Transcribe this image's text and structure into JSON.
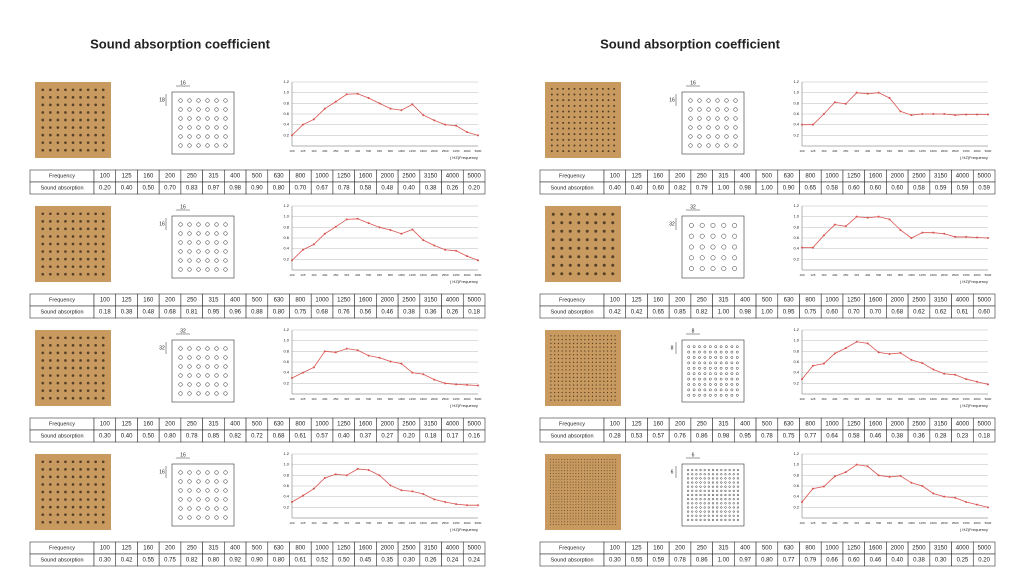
{
  "headers": [
    "Sound absorption coefficient",
    "Sound absorption coefficient"
  ],
  "chart_data": [
    {
      "type": "line",
      "x_label": "( HZ)Frequency",
      "row_labels": [
        "Frequency",
        "Sound absorption"
      ],
      "annotations": [
        "16",
        "18"
      ],
      "categories": [
        "100",
        "125",
        "160",
        "200",
        "250",
        "315",
        "400",
        "500",
        "630",
        "800",
        "1000",
        "1250",
        "1600",
        "2000",
        "2500",
        "3150",
        "4000",
        "5000"
      ],
      "values": [
        0.2,
        0.4,
        0.5,
        0.7,
        0.83,
        0.97,
        0.98,
        0.9,
        0.8,
        0.7,
        0.67,
        0.78,
        0.58,
        0.48,
        0.4,
        0.38,
        0.26,
        0.2
      ],
      "value_labels": [
        "0.20",
        "0.40",
        "0.50",
        "0.70",
        "0.83",
        "0.97",
        "0.98",
        "0.90",
        "0.80",
        "0.70",
        "0.67",
        "0.78",
        "0.58",
        "0.48",
        "0.40",
        "0.38",
        "0.26",
        "0.20"
      ],
      "color": "#d9534f",
      "ylim": [
        0,
        1.2
      ],
      "yticks": [
        0.2,
        0.4,
        0.6,
        0.8,
        {
          "value": 1,
          "label": "1.0"
        },
        1.2
      ],
      "grid": true
    },
    {
      "type": "line",
      "x_label": "( HZ)Frequency",
      "row_labels": [
        "Frequency",
        "Sound absorption"
      ],
      "annotations": [
        "16",
        "16"
      ],
      "categories": [
        "100",
        "125",
        "160",
        "200",
        "250",
        "315",
        "400",
        "500",
        "630",
        "800",
        "1000",
        "1250",
        "1600",
        "2000",
        "2500",
        "3150",
        "4000",
        "5000"
      ],
      "values": [
        0.18,
        0.38,
        0.48,
        0.68,
        0.81,
        0.95,
        0.96,
        0.88,
        0.8,
        0.75,
        0.68,
        0.76,
        0.56,
        0.46,
        0.38,
        0.36,
        0.26,
        0.18
      ],
      "value_labels": [
        "0.18",
        "0.38",
        "0.48",
        "0.68",
        "0.81",
        "0.95",
        "0.96",
        "0.88",
        "0.80",
        "0.75",
        "0.68",
        "0.76",
        "0.56",
        "0.46",
        "0.38",
        "0.36",
        "0.26",
        "0.18"
      ],
      "color": "#d9534f",
      "ylim": [
        0,
        1.2
      ],
      "yticks": [
        0.2,
        0.4,
        0.6,
        0.8,
        {
          "value": 1,
          "label": "1.0"
        },
        1.2
      ],
      "grid": true
    },
    {
      "type": "line",
      "x_label": "( HZ)Frequency",
      "row_labels": [
        "Frequency",
        "Sound absorption"
      ],
      "annotations": [
        "32",
        "32"
      ],
      "categories": [
        "100",
        "125",
        "160",
        "200",
        "250",
        "315",
        "400",
        "500",
        "630",
        "800",
        "1000",
        "1250",
        "1600",
        "2000",
        "2500",
        "3150",
        "4000",
        "5000"
      ],
      "values": [
        0.3,
        0.4,
        0.5,
        0.8,
        0.78,
        0.85,
        0.82,
        0.72,
        0.68,
        0.61,
        0.57,
        0.4,
        0.37,
        0.27,
        0.2,
        0.18,
        0.17,
        0.16
      ],
      "value_labels": [
        "0.30",
        "0.40",
        "0.50",
        "0.80",
        "0.78",
        "0.85",
        "0.82",
        "0.72",
        "0.68",
        "0.61",
        "0.57",
        "0.40",
        "0.37",
        "0.27",
        "0.20",
        "0.18",
        "0.17",
        "0.16"
      ],
      "color": "#d9534f",
      "ylim": [
        0,
        1.2
      ],
      "yticks": [
        0.2,
        0.4,
        0.6,
        0.8,
        {
          "value": 1,
          "label": "1.0"
        },
        1.2
      ],
      "grid": true
    },
    {
      "type": "line",
      "x_label": "( HZ)Frequency",
      "row_labels": [
        "Frequency",
        "Sound absorption"
      ],
      "annotations": [
        "16",
        "16"
      ],
      "categories": [
        "100",
        "125",
        "160",
        "200",
        "250",
        "315",
        "400",
        "500",
        "630",
        "800",
        "1000",
        "1250",
        "1600",
        "2000",
        "2500",
        "3150",
        "4000",
        "5000"
      ],
      "values": [
        0.3,
        0.42,
        0.55,
        0.75,
        0.82,
        0.8,
        0.92,
        0.9,
        0.8,
        0.61,
        0.52,
        0.5,
        0.45,
        0.35,
        0.3,
        0.26,
        0.24,
        0.24
      ],
      "value_labels": [
        "0.30",
        "0.42",
        "0.55",
        "0.75",
        "0.82",
        "0.80",
        "0.92",
        "0.90",
        "0.80",
        "0.61",
        "0.52",
        "0.50",
        "0.45",
        "0.35",
        "0.30",
        "0.26",
        "0.24",
        "0.24"
      ],
      "color": "#d9534f",
      "ylim": [
        0,
        1.2
      ],
      "yticks": [
        0.2,
        0.4,
        0.6,
        0.8,
        {
          "value": 1,
          "label": "1.0"
        },
        1.2
      ],
      "grid": true
    },
    {
      "type": "line",
      "x_label": "( HZ)Frequency",
      "row_labels": [
        "Frequency",
        "Sound absorption"
      ],
      "annotations": [
        "16",
        "16"
      ],
      "categories": [
        "100",
        "125",
        "160",
        "200",
        "250",
        "315",
        "400",
        "500",
        "630",
        "800",
        "1000",
        "1250",
        "1600",
        "2000",
        "2500",
        "3150",
        "4000",
        "5000"
      ],
      "values": [
        0.4,
        0.4,
        0.6,
        0.82,
        0.79,
        1,
        0.98,
        1,
        0.9,
        0.65,
        0.58,
        0.6,
        0.6,
        0.6,
        0.58,
        0.59,
        0.59,
        0.59
      ],
      "value_labels": [
        "0.40",
        "0.40",
        "0.60",
        "0.82",
        "0.79",
        "1.00",
        "0.98",
        "1.00",
        "0.90",
        "0.65",
        "0.58",
        "0.60",
        "0.60",
        "0.60",
        "0.58",
        "0.59",
        "0.59",
        "0.59"
      ],
      "color": "#d9534f",
      "ylim": [
        0,
        1.2
      ],
      "yticks": [
        0.2,
        0.4,
        0.6,
        0.8,
        {
          "value": 1,
          "label": "1.0"
        },
        1.2
      ],
      "grid": true
    },
    {
      "type": "line",
      "x_label": "( HZ)Frequency",
      "row_labels": [
        "Frequency",
        "Sound absorption"
      ],
      "annotations": [
        "32",
        "32"
      ],
      "categories": [
        "100",
        "125",
        "160",
        "200",
        "250",
        "315",
        "400",
        "500",
        "630",
        "800",
        "1000",
        "1250",
        "1600",
        "2000",
        "2500",
        "3150",
        "4000",
        "5000"
      ],
      "values": [
        0.42,
        0.42,
        0.65,
        0.85,
        0.82,
        1,
        0.98,
        1,
        0.95,
        0.75,
        0.6,
        0.7,
        0.7,
        0.68,
        0.62,
        0.62,
        0.61,
        0.6
      ],
      "value_labels": [
        "0.42",
        "0.42",
        "0.65",
        "0.85",
        "0.82",
        "1.00",
        "0.98",
        "1.00",
        "0.95",
        "0.75",
        "0.60",
        "0.70",
        "0.70",
        "0.68",
        "0.62",
        "0.62",
        "0.61",
        "0.60"
      ],
      "color": "#d9534f",
      "ylim": [
        0,
        1.2
      ],
      "yticks": [
        0.2,
        0.4,
        0.6,
        0.8,
        {
          "value": 1,
          "label": "1.0"
        },
        1.2
      ],
      "grid": true
    },
    {
      "type": "line",
      "x_label": "( HZ)Frequency",
      "row_labels": [
        "Frequency",
        "Sound absorption"
      ],
      "annotations": [
        "8",
        "8"
      ],
      "categories": [
        "100",
        "125",
        "160",
        "200",
        "250",
        "315",
        "400",
        "500",
        "630",
        "800",
        "1000",
        "1250",
        "1600",
        "2000",
        "2500",
        "3150",
        "4000",
        "5000"
      ],
      "values": [
        0.28,
        0.53,
        0.57,
        0.76,
        0.86,
        0.98,
        0.95,
        0.78,
        0.75,
        0.77,
        0.64,
        0.58,
        0.46,
        0.38,
        0.36,
        0.28,
        0.23,
        0.18
      ],
      "value_labels": [
        "0.28",
        "0.53",
        "0.57",
        "0.76",
        "0.86",
        "0.98",
        "0.95",
        "0.78",
        "0.75",
        "0.77",
        "0.64",
        "0.58",
        "0.46",
        "0.38",
        "0.36",
        "0.28",
        "0.23",
        "0.18"
      ],
      "color": "#d9534f",
      "ylim": [
        0,
        1.2
      ],
      "yticks": [
        0.2,
        0.4,
        0.6,
        0.8,
        {
          "value": 1,
          "label": "1.0"
        },
        1.2
      ],
      "grid": true
    },
    {
      "type": "line",
      "x_label": "( HZ)Frequency",
      "row_labels": [
        "Frequency",
        "Sound absorption"
      ],
      "annotations": [
        "6",
        "6"
      ],
      "categories": [
        "100",
        "125",
        "160",
        "200",
        "250",
        "315",
        "400",
        "500",
        "630",
        "800",
        "1000",
        "1250",
        "1600",
        "2000",
        "2500",
        "3150",
        "4000",
        "5000"
      ],
      "values": [
        0.3,
        0.55,
        0.59,
        0.78,
        0.86,
        1,
        0.97,
        0.8,
        0.77,
        0.79,
        0.66,
        0.6,
        0.46,
        0.4,
        0.38,
        0.3,
        0.25,
        0.2
      ],
      "value_labels": [
        "0.30",
        "0.55",
        "0.59",
        "0.78",
        "0.86",
        "1.00",
        "0.97",
        "0.80",
        "0.77",
        "0.79",
        "0.66",
        "0.60",
        "0.46",
        "0.40",
        "0.38",
        "0.30",
        "0.25",
        "0.20"
      ],
      "color": "#d9534f",
      "ylim": [
        0,
        1.2
      ],
      "yticks": [
        0.2,
        0.4,
        0.6,
        0.8,
        {
          "value": 1,
          "label": "1.0"
        },
        1.2
      ],
      "grid": true
    }
  ]
}
